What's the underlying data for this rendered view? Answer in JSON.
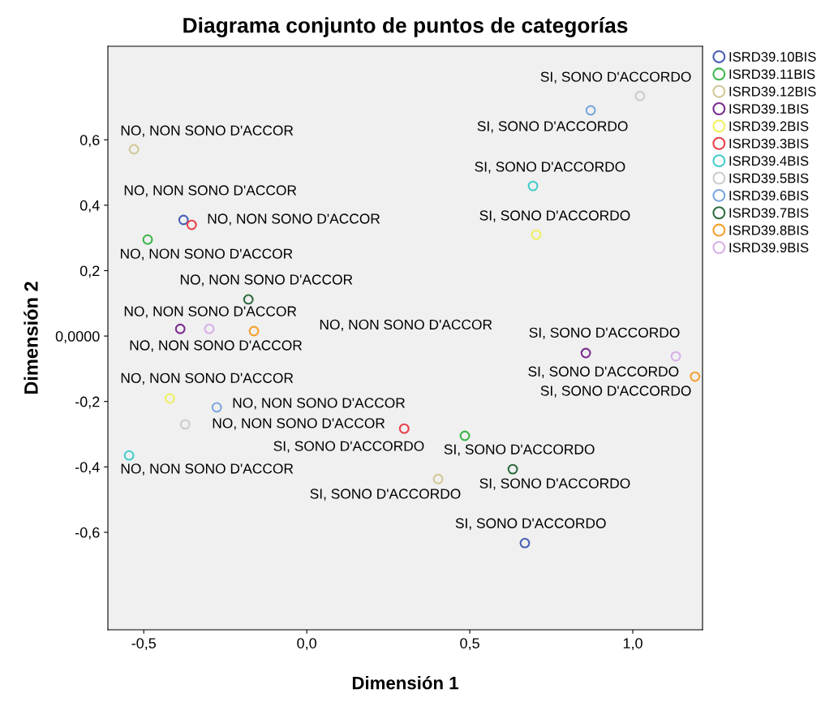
{
  "chart_data": {
    "type": "scatter",
    "title": "Diagrama conjunto de puntos de categorías",
    "xlabel": "Dimensión 1",
    "ylabel": "Dimensión 2",
    "xlim": [
      -0.61,
      1.214
    ],
    "ylim": [
      -0.898,
      0.886
    ],
    "xticks": [
      {
        "value": -0.5,
        "label": "-0,5"
      },
      {
        "value": 0.0,
        "label": "0,0"
      },
      {
        "value": 0.5,
        "label": "0,5"
      },
      {
        "value": 1.0,
        "label": "1,0"
      }
    ],
    "yticks": [
      {
        "value": -0.6,
        "label": "-0,6"
      },
      {
        "value": -0.4,
        "label": "-0,4"
      },
      {
        "value": -0.2,
        "label": "-0,2"
      },
      {
        "value": 0.0,
        "label": "0,0000"
      },
      {
        "value": 0.2,
        "label": "0,2"
      },
      {
        "value": 0.4,
        "label": "0,4"
      },
      {
        "value": 0.6,
        "label": "0,6"
      }
    ],
    "grid": false,
    "legend": "right",
    "marker": "circle",
    "series": [
      {
        "name": "ISRD39.10BIS",
        "color": "#4a5fb5",
        "x": [
          -0.378,
          0.669
        ],
        "values": [
          0.355,
          -0.633
        ]
      },
      {
        "name": "ISRD39.11BIS",
        "color": "#3cb44b",
        "x": [
          -0.488,
          0.485
        ],
        "values": [
          0.295,
          -0.305
        ]
      },
      {
        "name": "ISRD39.12BIS",
        "color": "#d2c89a",
        "x": [
          -0.53,
          0.403
        ],
        "values": [
          0.571,
          -0.437
        ]
      },
      {
        "name": "ISRD39.1BIS",
        "color": "#7b2d8e",
        "x": [
          -0.388,
          0.856
        ],
        "values": [
          0.022,
          -0.052
        ]
      },
      {
        "name": "ISRD39.2BIS",
        "color": "#f0f060",
        "x": [
          -0.42,
          0.704
        ],
        "values": [
          -0.191,
          0.31
        ]
      },
      {
        "name": "ISRD39.3BIS",
        "color": "#e8404a",
        "x": [
          -0.353,
          0.299
        ],
        "values": [
          0.34,
          -0.283
        ]
      },
      {
        "name": "ISRD39.4BIS",
        "color": "#44cccc",
        "x": [
          -0.545,
          0.694
        ],
        "values": [
          -0.365,
          0.459
        ]
      },
      {
        "name": "ISRD39.5BIS",
        "color": "#cccccc",
        "x": [
          -0.373,
          1.022
        ],
        "values": [
          -0.27,
          0.734
        ]
      },
      {
        "name": "ISRD39.6BIS",
        "color": "#7ba7dd",
        "x": [
          -0.276,
          0.871
        ],
        "values": [
          -0.218,
          0.69
        ]
      },
      {
        "name": "ISRD39.7BIS",
        "color": "#2e6b3e",
        "x": [
          -0.179,
          0.632
        ],
        "values": [
          0.112,
          -0.407
        ]
      },
      {
        "name": "ISRD39.8BIS",
        "color": "#f5a030",
        "x": [
          -0.162,
          1.191
        ],
        "values": [
          0.015,
          -0.124
        ]
      },
      {
        "name": "ISRD39.9BIS",
        "color": "#d8b0e8",
        "x": [
          -0.299,
          1.132
        ],
        "values": [
          0.022,
          -0.062
        ]
      }
    ],
    "annotations": [
      {
        "text": "SI, SONO D'ACCORDO",
        "x": 1.022,
        "y": 0.734
      },
      {
        "text": "SI, SONO D'ACCORDO",
        "x": 0.871,
        "y": 0.69
      },
      {
        "text": "NO, NON SONO D'ACCOR",
        "x": -0.53,
        "y": 0.571
      },
      {
        "text": "SI, SONO D'ACCORDO",
        "x": 0.694,
        "y": 0.459
      },
      {
        "text": "NO, NON SONO D'ACCOR",
        "x": -0.378,
        "y": 0.355
      },
      {
        "text": "SI, SONO D'ACCORDO",
        "x": 0.704,
        "y": 0.31
      },
      {
        "text": "NO, NON SONO D'ACCOR",
        "x": -0.353,
        "y": 0.34
      },
      {
        "text": "NO, NON SONO D'ACCOR",
        "x": -0.488,
        "y": 0.295
      },
      {
        "text": "NO, NON SONO D'ACCOR",
        "x": -0.179,
        "y": 0.112
      },
      {
        "text": "NO, NON SONO D'ACCOR",
        "x": -0.388,
        "y": 0.022
      },
      "NO, NON SONO D'ACCOR",
      {
        "text": "NO, NON SONO D'ACCOR",
        "x": -0.299,
        "y": 0.022
      },
      {
        "text": "SI, SONO D'ACCORDO",
        "x": 0.856,
        "y": -0.052
      },
      {
        "text": "SI, SONO D'ACCORDO",
        "x": 1.132,
        "y": -0.062
      },
      {
        "text": "SI, SONO D'ACCORDO",
        "x": 1.191,
        "y": -0.124
      },
      {
        "text": "NO, NON SONO D'ACCOR",
        "x": -0.42,
        "y": -0.191
      },
      {
        "text": "NO, NON SONO D'ACCOR",
        "x": -0.276,
        "y": -0.218
      },
      {
        "text": "NO, NON SONO D'ACCOR",
        "x": -0.373,
        "y": -0.27
      },
      {
        "text": "SI, SONO D'ACCORDO",
        "x": 0.299,
        "y": -0.283
      },
      {
        "text": "SI, SONO D'ACCORDO",
        "x": 0.485,
        "y": -0.305
      },
      {
        "text": "NO, NON SONO D'ACCOR",
        "x": -0.545,
        "y": -0.365
      },
      {
        "text": "SI, SONO D'ACCORDO",
        "x": 0.403,
        "y": -0.437
      },
      {
        "text": "SI, SONO D'ACCORDO",
        "x": 0.632,
        "y": -0.407
      },
      {
        "text": "SI, SONO D'ACCORDO",
        "x": 0.669,
        "y": -0.633
      }
    ]
  }
}
